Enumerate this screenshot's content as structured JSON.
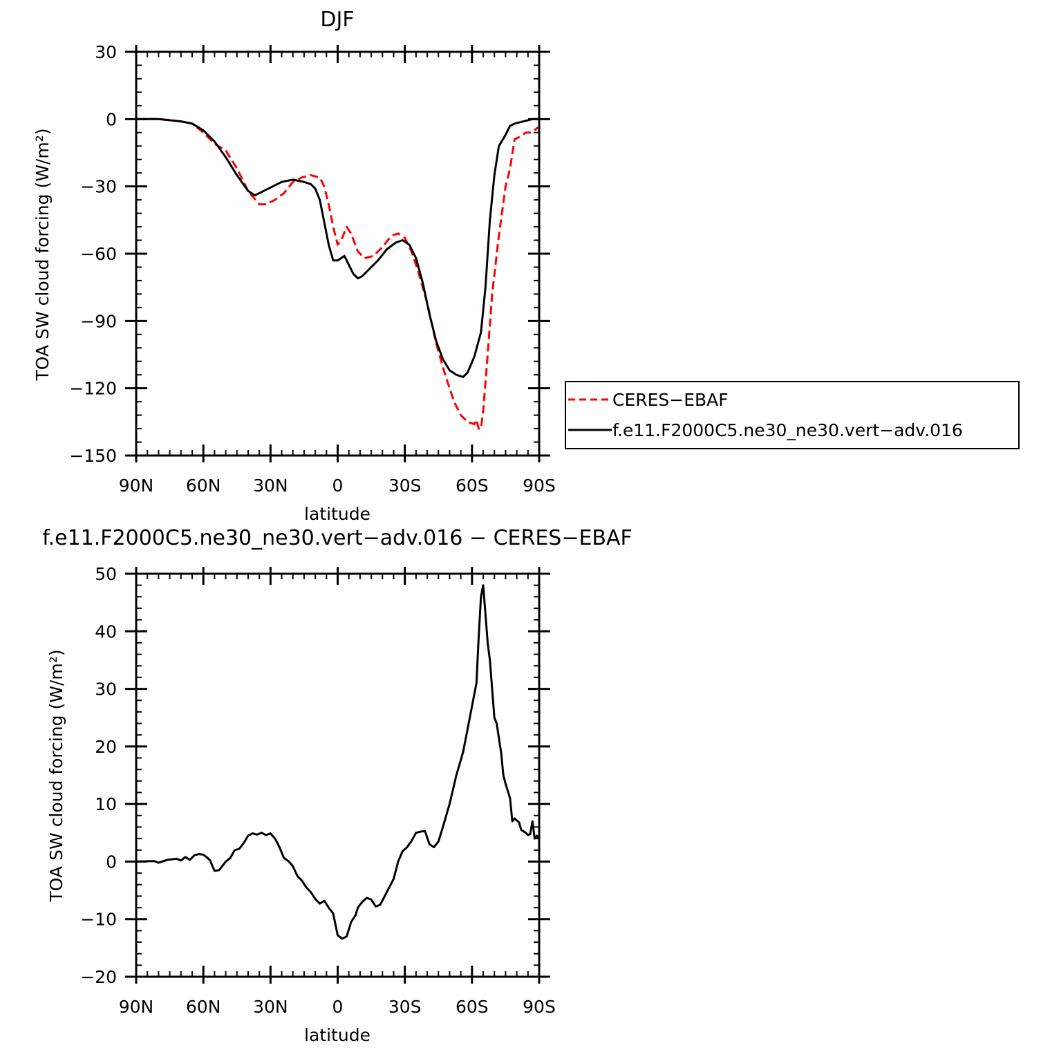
{
  "chart_data": [
    {
      "type": "line",
      "title": "DJF",
      "xlabel": "latitude",
      "ylabel": "TOA SW cloud forcing (W/m²)",
      "xlim": [
        90,
        -90
      ],
      "ylim": [
        -150,
        30
      ],
      "x_ticks": [
        {
          "v": 90,
          "label": "90N"
        },
        {
          "v": 60,
          "label": "60N"
        },
        {
          "v": 30,
          "label": "30N"
        },
        {
          "v": 0,
          "label": "0"
        },
        {
          "v": -30,
          "label": "30S"
        },
        {
          "v": -60,
          "label": "60S"
        },
        {
          "v": -90,
          "label": "90S"
        }
      ],
      "y_ticks": [
        30,
        0,
        -30,
        -60,
        -90,
        -120,
        -150
      ],
      "y_tick_labels": [
        "30",
        "0",
        "−30",
        "−60",
        "−90",
        "−120",
        "−150"
      ],
      "legend": "right",
      "series": [
        {
          "name": "CERES−EBAF",
          "color": "#ff0000",
          "dashed": true,
          "points": [
            [
              90,
              0
            ],
            [
              80,
              0
            ],
            [
              70,
              -1
            ],
            [
              65,
              -2
            ],
            [
              60,
              -6
            ],
            [
              55,
              -11
            ],
            [
              50,
              -14
            ],
            [
              45,
              -22
            ],
            [
              40,
              -32
            ],
            [
              35,
              -38
            ],
            [
              32,
              -38
            ],
            [
              28,
              -36
            ],
            [
              24,
              -33
            ],
            [
              20,
              -28
            ],
            [
              16,
              -26
            ],
            [
              12,
              -25
            ],
            [
              8,
              -26
            ],
            [
              6,
              -30
            ],
            [
              4,
              -38
            ],
            [
              2,
              -48
            ],
            [
              0,
              -56
            ],
            [
              -2,
              -53
            ],
            [
              -4,
              -48
            ],
            [
              -6,
              -51
            ],
            [
              -9,
              -59
            ],
            [
              -12,
              -62
            ],
            [
              -16,
              -61
            ],
            [
              -20,
              -57
            ],
            [
              -24,
              -52
            ],
            [
              -27,
              -51
            ],
            [
              -30,
              -53
            ],
            [
              -33,
              -59
            ],
            [
              -36,
              -68
            ],
            [
              -40,
              -82
            ],
            [
              -44,
              -100
            ],
            [
              -48,
              -114
            ],
            [
              -52,
              -126
            ],
            [
              -55,
              -132
            ],
            [
              -58,
              -135
            ],
            [
              -61,
              -136
            ],
            [
              -62,
              -134
            ],
            [
              -63,
              -138
            ],
            [
              -64,
              -138
            ],
            [
              -65,
              -130
            ],
            [
              -67,
              -105
            ],
            [
              -69,
              -78
            ],
            [
              -72,
              -52
            ],
            [
              -75,
              -30
            ],
            [
              -77,
              -22
            ],
            [
              -79,
              -9
            ],
            [
              -81,
              -8
            ],
            [
              -84,
              -6
            ],
            [
              -86,
              -6
            ],
            [
              -88,
              -5
            ],
            [
              -89,
              -4
            ],
            [
              -90,
              -4
            ]
          ]
        },
        {
          "name": "f.e11.F2000C5.ne30_ne30.vert−adv.016",
          "color": "#000000",
          "dashed": false,
          "points": [
            [
              90,
              0
            ],
            [
              80,
              0
            ],
            [
              70,
              -1
            ],
            [
              65,
              -2
            ],
            [
              60,
              -5
            ],
            [
              55,
              -10
            ],
            [
              50,
              -17
            ],
            [
              45,
              -25
            ],
            [
              40,
              -32
            ],
            [
              37,
              -34
            ],
            [
              33,
              -32
            ],
            [
              29,
              -30
            ],
            [
              25,
              -28
            ],
            [
              20,
              -27
            ],
            [
              15,
              -28
            ],
            [
              12,
              -29
            ],
            [
              10,
              -31
            ],
            [
              8,
              -36
            ],
            [
              6,
              -46
            ],
            [
              4,
              -56
            ],
            [
              2,
              -63
            ],
            [
              0,
              -63
            ],
            [
              -3,
              -61
            ],
            [
              -5,
              -65
            ],
            [
              -7,
              -69
            ],
            [
              -9,
              -71
            ],
            [
              -11,
              -70
            ],
            [
              -14,
              -67
            ],
            [
              -18,
              -63
            ],
            [
              -22,
              -58
            ],
            [
              -26,
              -55
            ],
            [
              -29,
              -54
            ],
            [
              -32,
              -56
            ],
            [
              -35,
              -62
            ],
            [
              -38,
              -73
            ],
            [
              -41,
              -87
            ],
            [
              -44,
              -99
            ],
            [
              -47,
              -107
            ],
            [
              -50,
              -112
            ],
            [
              -53,
              -114
            ],
            [
              -56,
              -115
            ],
            [
              -58,
              -113
            ],
            [
              -61,
              -106
            ],
            [
              -64,
              -95
            ],
            [
              -66,
              -75
            ],
            [
              -68,
              -45
            ],
            [
              -70,
              -25
            ],
            [
              -72,
              -12
            ],
            [
              -75,
              -7
            ],
            [
              -77,
              -3
            ],
            [
              -79,
              -2
            ],
            [
              -83,
              -1
            ],
            [
              -87,
              0
            ],
            [
              -90,
              0
            ]
          ]
        }
      ]
    },
    {
      "type": "line",
      "title": "f.e11.F2000C5.ne30_ne30.vert−adv.016 − CERES−EBAF",
      "xlabel": "latitude",
      "ylabel": "TOA SW cloud forcing (W/m²)",
      "xlim": [
        90,
        -90
      ],
      "ylim": [
        -20,
        50
      ],
      "x_ticks": [
        {
          "v": 90,
          "label": "90N"
        },
        {
          "v": 60,
          "label": "60N"
        },
        {
          "v": 30,
          "label": "30N"
        },
        {
          "v": 0,
          "label": "0"
        },
        {
          "v": -30,
          "label": "30S"
        },
        {
          "v": -60,
          "label": "60S"
        },
        {
          "v": -90,
          "label": "90S"
        }
      ],
      "y_ticks": [
        50,
        40,
        30,
        20,
        10,
        0,
        -10,
        -20
      ],
      "y_tick_labels": [
        "50",
        "40",
        "30",
        "20",
        "10",
        "0",
        "−10",
        "−20"
      ],
      "series": [
        {
          "color": "#000000",
          "dashed": false,
          "points": [
            [
              90,
              0
            ],
            [
              82,
              0.1
            ],
            [
              80,
              -0.2
            ],
            [
              76,
              0.3
            ],
            [
              72,
              0.5
            ],
            [
              70,
              0.2
            ],
            [
              68,
              0.8
            ],
            [
              66,
              0.3
            ],
            [
              64,
              1.1
            ],
            [
              62,
              1.3
            ],
            [
              60,
              1.2
            ],
            [
              58,
              0.6
            ],
            [
              57,
              0.2
            ],
            [
              55,
              -1.6
            ],
            [
              53,
              -1.5
            ],
            [
              52,
              -1
            ],
            [
              50,
              0
            ],
            [
              48,
              0.6
            ],
            [
              46,
              2
            ],
            [
              44,
              2.2
            ],
            [
              42,
              3.2
            ],
            [
              40,
              4.5
            ],
            [
              38,
              4.9
            ],
            [
              36,
              4.7
            ],
            [
              34,
              5
            ],
            [
              32,
              4.6
            ],
            [
              30,
              4.9
            ],
            [
              28,
              4
            ],
            [
              26,
              2.5
            ],
            [
              24,
              0.6
            ],
            [
              22,
              0.1
            ],
            [
              20,
              -0.8
            ],
            [
              18,
              -2.5
            ],
            [
              16,
              -3.3
            ],
            [
              14,
              -4.5
            ],
            [
              12,
              -5.3
            ],
            [
              10,
              -6.5
            ],
            [
              8,
              -7.3
            ],
            [
              6,
              -6.8
            ],
            [
              4,
              -8
            ],
            [
              2,
              -9
            ],
            [
              0,
              -12.8
            ],
            [
              -2,
              -13.4
            ],
            [
              -4,
              -13
            ],
            [
              -6,
              -10.5
            ],
            [
              -8,
              -9.3
            ],
            [
              -9,
              -8
            ],
            [
              -11,
              -7
            ],
            [
              -13,
              -6.3
            ],
            [
              -15,
              -6.6
            ],
            [
              -17,
              -7.8
            ],
            [
              -19,
              -7.5
            ],
            [
              -21,
              -6
            ],
            [
              -23,
              -4.5
            ],
            [
              -25,
              -3
            ],
            [
              -27,
              0
            ],
            [
              -29,
              1.8
            ],
            [
              -31,
              2.5
            ],
            [
              -33,
              3.6
            ],
            [
              -35,
              5
            ],
            [
              -37,
              5.2
            ],
            [
              -39,
              5.3
            ],
            [
              -41,
              3
            ],
            [
              -43,
              2.5
            ],
            [
              -45,
              3.5
            ],
            [
              -47,
              6
            ],
            [
              -50,
              10
            ],
            [
              -53,
              15
            ],
            [
              -56,
              19
            ],
            [
              -58,
              23
            ],
            [
              -60,
              27
            ],
            [
              -62,
              31
            ],
            [
              -63,
              39
            ],
            [
              -64,
              46
            ],
            [
              -65,
              48
            ],
            [
              -66,
              43
            ],
            [
              -67,
              38
            ],
            [
              -68,
              35
            ],
            [
              -70,
              25
            ],
            [
              -71,
              24
            ],
            [
              -73,
              19
            ],
            [
              -74,
              15
            ],
            [
              -75,
              13.5
            ],
            [
              -77,
              11
            ],
            [
              -78,
              7
            ],
            [
              -79,
              7.5
            ],
            [
              -81,
              6.8
            ],
            [
              -82,
              5.5
            ],
            [
              -84,
              5
            ],
            [
              -85,
              4.6
            ],
            [
              -86,
              4.8
            ],
            [
              -87,
              7
            ],
            [
              -88,
              4
            ],
            [
              -89,
              4.5
            ],
            [
              -90,
              4
            ]
          ]
        }
      ]
    }
  ]
}
